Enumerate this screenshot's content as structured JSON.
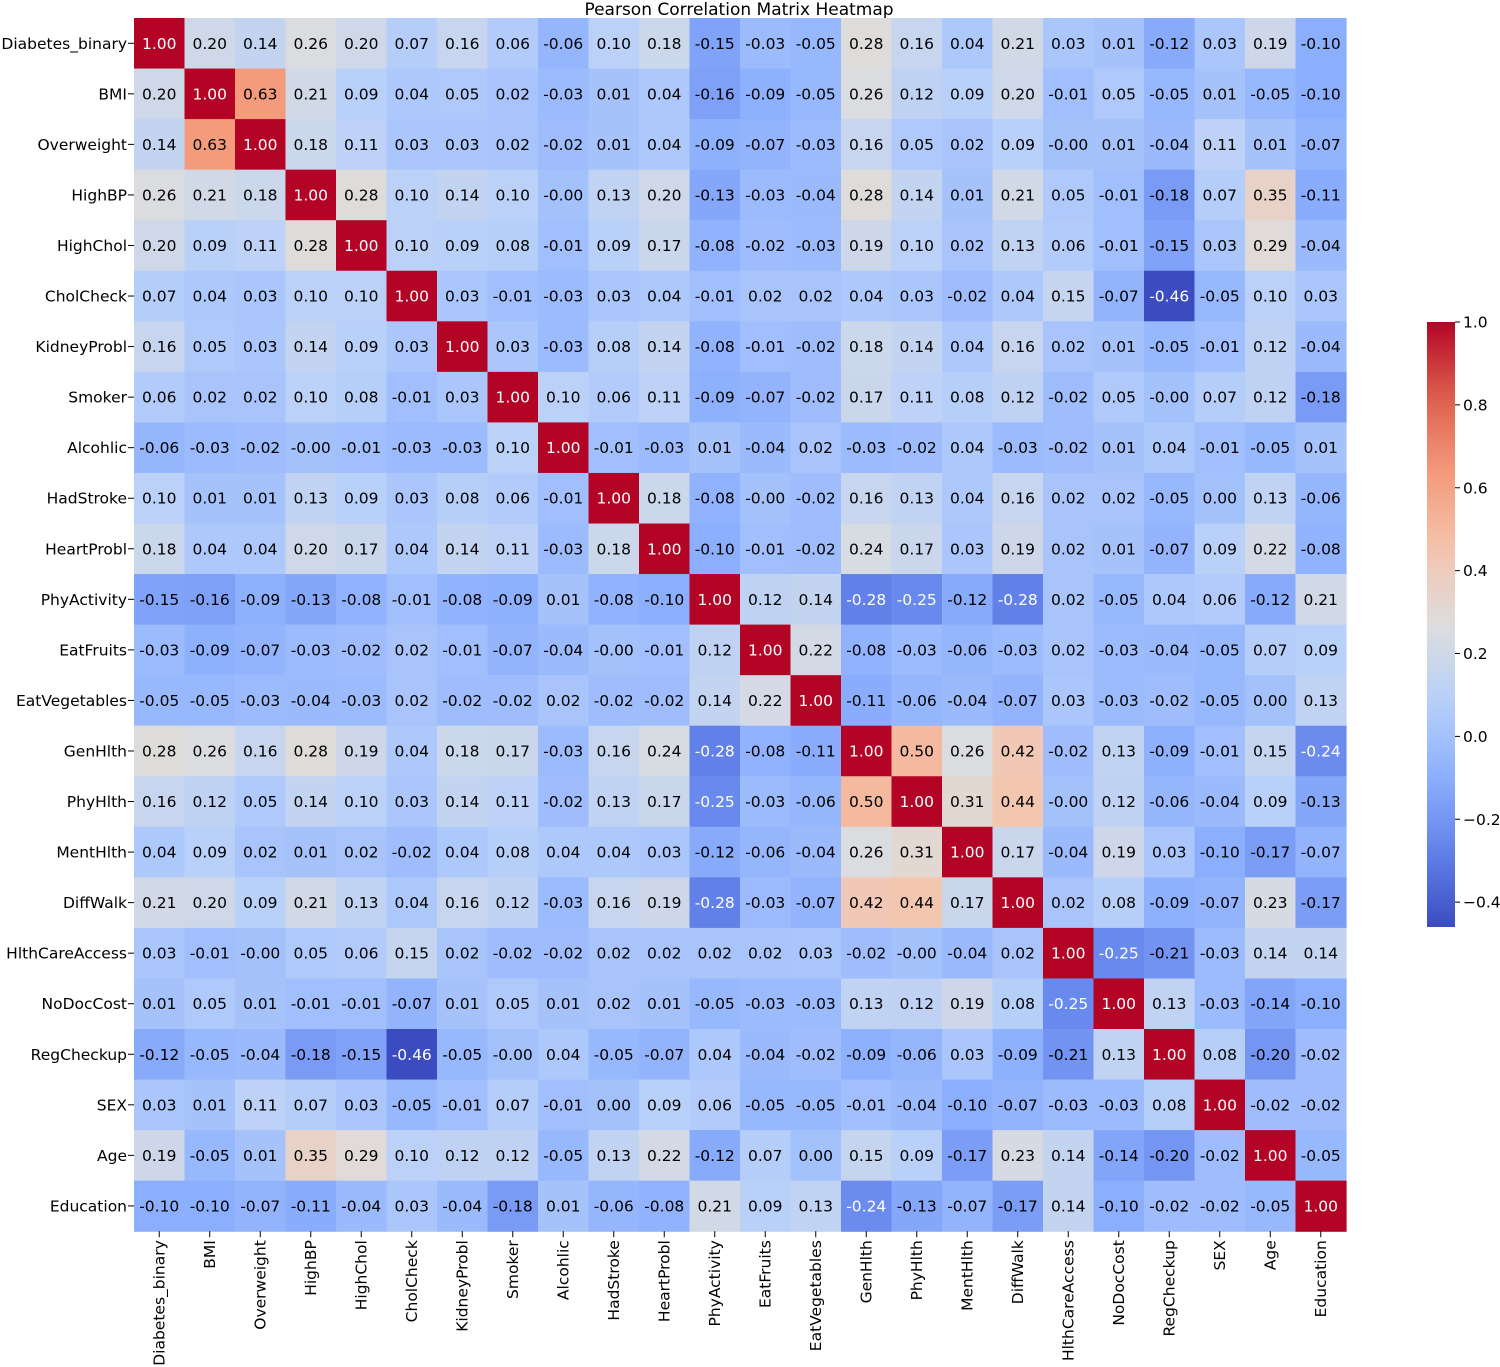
{
  "chart_data": {
    "type": "heatmap",
    "title": "Pearson Correlation Matrix Heatmap",
    "xlabel": "",
    "ylabel": "",
    "colormap": "coolwarm",
    "value_format": "2 decimals",
    "color_range": [
      -0.46,
      1.0
    ],
    "labels": [
      "Diabetes_binary",
      "BMI",
      "Overweight",
      "HighBP",
      "HighChol",
      "CholCheck",
      "KidneyProbl",
      "Smoker",
      "Alcohlic",
      "HadStroke",
      "HeartProbl",
      "PhyActivity",
      "EatFruits",
      "EatVegetables",
      "GenHlth",
      "PhyHlth",
      "MentHlth",
      "DiffWalk",
      "HlthCareAccess",
      "NoDocCost",
      "RegCheckup",
      "SEX",
      "Age",
      "Education"
    ],
    "matrix": [
      [
        1.0,
        0.2,
        0.14,
        0.26,
        0.2,
        0.07,
        0.16,
        0.06,
        -0.06,
        0.1,
        0.18,
        -0.15,
        -0.03,
        -0.05,
        0.28,
        0.16,
        0.04,
        0.21,
        0.03,
        0.01,
        -0.12,
        0.03,
        0.19,
        -0.1
      ],
      [
        0.2,
        1.0,
        0.63,
        0.21,
        0.09,
        0.04,
        0.05,
        0.02,
        -0.03,
        0.01,
        0.04,
        -0.16,
        -0.09,
        -0.05,
        0.26,
        0.12,
        0.09,
        0.2,
        -0.01,
        0.05,
        -0.05,
        0.01,
        -0.05,
        -0.1
      ],
      [
        0.14,
        0.63,
        1.0,
        0.18,
        0.11,
        0.03,
        0.03,
        0.02,
        -0.02,
        0.01,
        0.04,
        -0.09,
        -0.07,
        -0.03,
        0.16,
        0.05,
        0.02,
        0.09,
        -0.0,
        0.01,
        -0.04,
        0.11,
        0.01,
        -0.07
      ],
      [
        0.26,
        0.21,
        0.18,
        1.0,
        0.28,
        0.1,
        0.14,
        0.1,
        -0.0,
        0.13,
        0.2,
        -0.13,
        -0.03,
        -0.04,
        0.28,
        0.14,
        0.01,
        0.21,
        0.05,
        -0.01,
        -0.18,
        0.07,
        0.35,
        -0.11
      ],
      [
        0.2,
        0.09,
        0.11,
        0.28,
        1.0,
        0.1,
        0.09,
        0.08,
        -0.01,
        0.09,
        0.17,
        -0.08,
        -0.02,
        -0.03,
        0.19,
        0.1,
        0.02,
        0.13,
        0.06,
        -0.01,
        -0.15,
        0.03,
        0.29,
        -0.04
      ],
      [
        0.07,
        0.04,
        0.03,
        0.1,
        0.1,
        1.0,
        0.03,
        -0.01,
        -0.03,
        0.03,
        0.04,
        -0.01,
        0.02,
        0.02,
        0.04,
        0.03,
        -0.02,
        0.04,
        0.15,
        -0.07,
        -0.46,
        -0.05,
        0.1,
        0.03
      ],
      [
        0.16,
        0.05,
        0.03,
        0.14,
        0.09,
        0.03,
        1.0,
        0.03,
        -0.03,
        0.08,
        0.14,
        -0.08,
        -0.01,
        -0.02,
        0.18,
        0.14,
        0.04,
        0.16,
        0.02,
        0.01,
        -0.05,
        -0.01,
        0.12,
        -0.04
      ],
      [
        0.06,
        0.02,
        0.02,
        0.1,
        0.08,
        -0.01,
        0.03,
        1.0,
        0.1,
        0.06,
        0.11,
        -0.09,
        -0.07,
        -0.02,
        0.17,
        0.11,
        0.08,
        0.12,
        -0.02,
        0.05,
        -0.0,
        0.07,
        0.12,
        -0.18
      ],
      [
        -0.06,
        -0.03,
        -0.02,
        -0.0,
        -0.01,
        -0.03,
        -0.03,
        0.1,
        1.0,
        -0.01,
        -0.03,
        0.01,
        -0.04,
        0.02,
        -0.03,
        -0.02,
        0.04,
        -0.03,
        -0.02,
        0.01,
        0.04,
        -0.01,
        -0.05,
        0.01
      ],
      [
        0.1,
        0.01,
        0.01,
        0.13,
        0.09,
        0.03,
        0.08,
        0.06,
        -0.01,
        1.0,
        0.18,
        -0.08,
        -0.0,
        -0.02,
        0.16,
        0.13,
        0.04,
        0.16,
        0.02,
        0.02,
        -0.05,
        0.0,
        0.13,
        -0.06
      ],
      [
        0.18,
        0.04,
        0.04,
        0.2,
        0.17,
        0.04,
        0.14,
        0.11,
        -0.03,
        0.18,
        1.0,
        -0.1,
        -0.01,
        -0.02,
        0.24,
        0.17,
        0.03,
        0.19,
        0.02,
        0.01,
        -0.07,
        0.09,
        0.22,
        -0.08
      ],
      [
        -0.15,
        -0.16,
        -0.09,
        -0.13,
        -0.08,
        -0.01,
        -0.08,
        -0.09,
        0.01,
        -0.08,
        -0.1,
        1.0,
        0.12,
        0.14,
        -0.28,
        -0.25,
        -0.12,
        -0.28,
        0.02,
        -0.05,
        0.04,
        0.06,
        -0.12,
        0.21
      ],
      [
        -0.03,
        -0.09,
        -0.07,
        -0.03,
        -0.02,
        0.02,
        -0.01,
        -0.07,
        -0.04,
        -0.0,
        -0.01,
        0.12,
        1.0,
        0.22,
        -0.08,
        -0.03,
        -0.06,
        -0.03,
        0.02,
        -0.03,
        -0.04,
        -0.05,
        0.07,
        0.09
      ],
      [
        -0.05,
        -0.05,
        -0.03,
        -0.04,
        -0.03,
        0.02,
        -0.02,
        -0.02,
        0.02,
        -0.02,
        -0.02,
        0.14,
        0.22,
        1.0,
        -0.11,
        -0.06,
        -0.04,
        -0.07,
        0.03,
        -0.03,
        -0.02,
        -0.05,
        0.0,
        0.13
      ],
      [
        0.28,
        0.26,
        0.16,
        0.28,
        0.19,
        0.04,
        0.18,
        0.17,
        -0.03,
        0.16,
        0.24,
        -0.28,
        -0.08,
        -0.11,
        1.0,
        0.5,
        0.26,
        0.42,
        -0.02,
        0.13,
        -0.09,
        -0.01,
        0.15,
        -0.24
      ],
      [
        0.16,
        0.12,
        0.05,
        0.14,
        0.1,
        0.03,
        0.14,
        0.11,
        -0.02,
        0.13,
        0.17,
        -0.25,
        -0.03,
        -0.06,
        0.5,
        1.0,
        0.31,
        0.44,
        -0.0,
        0.12,
        -0.06,
        -0.04,
        0.09,
        -0.13
      ],
      [
        0.04,
        0.09,
        0.02,
        0.01,
        0.02,
        -0.02,
        0.04,
        0.08,
        0.04,
        0.04,
        0.03,
        -0.12,
        -0.06,
        -0.04,
        0.26,
        0.31,
        1.0,
        0.17,
        -0.04,
        0.19,
        0.03,
        -0.1,
        -0.17,
        -0.07
      ],
      [
        0.21,
        0.2,
        0.09,
        0.21,
        0.13,
        0.04,
        0.16,
        0.12,
        -0.03,
        0.16,
        0.19,
        -0.28,
        -0.03,
        -0.07,
        0.42,
        0.44,
        0.17,
        1.0,
        0.02,
        0.08,
        -0.09,
        -0.07,
        0.23,
        -0.17
      ],
      [
        0.03,
        -0.01,
        -0.0,
        0.05,
        0.06,
        0.15,
        0.02,
        -0.02,
        -0.02,
        0.02,
        0.02,
        0.02,
        0.02,
        0.03,
        -0.02,
        -0.0,
        -0.04,
        0.02,
        1.0,
        -0.25,
        -0.21,
        -0.03,
        0.14,
        0.14
      ],
      [
        0.01,
        0.05,
        0.01,
        -0.01,
        -0.01,
        -0.07,
        0.01,
        0.05,
        0.01,
        0.02,
        0.01,
        -0.05,
        -0.03,
        -0.03,
        0.13,
        0.12,
        0.19,
        0.08,
        -0.25,
        1.0,
        0.13,
        -0.03,
        -0.14,
        -0.1
      ],
      [
        -0.12,
        -0.05,
        -0.04,
        -0.18,
        -0.15,
        -0.46,
        -0.05,
        -0.0,
        0.04,
        -0.05,
        -0.07,
        0.04,
        -0.04,
        -0.02,
        -0.09,
        -0.06,
        0.03,
        -0.09,
        -0.21,
        0.13,
        1.0,
        0.08,
        -0.2,
        -0.02
      ],
      [
        0.03,
        0.01,
        0.11,
        0.07,
        0.03,
        -0.05,
        -0.01,
        0.07,
        -0.01,
        0.0,
        0.09,
        0.06,
        -0.05,
        -0.05,
        -0.01,
        -0.04,
        -0.1,
        -0.07,
        -0.03,
        -0.03,
        0.08,
        1.0,
        -0.02,
        -0.02
      ],
      [
        0.19,
        -0.05,
        0.01,
        0.35,
        0.29,
        0.1,
        0.12,
        0.12,
        -0.05,
        0.13,
        0.22,
        -0.12,
        0.07,
        0.0,
        0.15,
        0.09,
        -0.17,
        0.23,
        0.14,
        -0.14,
        -0.2,
        -0.02,
        1.0,
        -0.05
      ],
      [
        -0.1,
        -0.1,
        -0.07,
        -0.11,
        -0.04,
        0.03,
        -0.04,
        -0.18,
        0.01,
        -0.06,
        -0.08,
        0.21,
        0.09,
        0.13,
        -0.24,
        -0.13,
        -0.07,
        -0.17,
        0.14,
        -0.1,
        -0.02,
        -0.02,
        -0.05,
        1.0
      ]
    ],
    "colorbar": {
      "ticks": [
        1.0,
        0.8,
        0.6,
        0.4,
        0.2,
        0.0,
        -0.2,
        -0.4
      ],
      "tick_labels": [
        "1.0",
        "0.8",
        "0.6",
        "0.4",
        "0.2",
        "0.0",
        "−0.2",
        "−0.4"
      ]
    }
  }
}
